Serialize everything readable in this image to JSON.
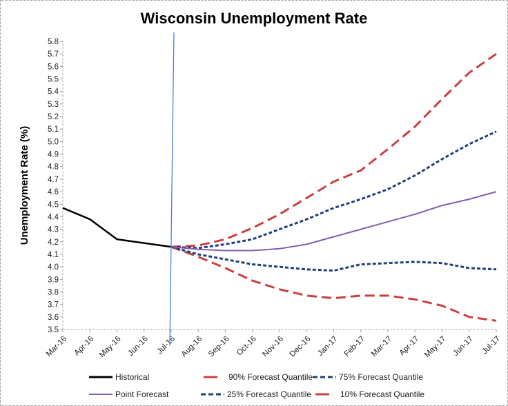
{
  "chart_data": {
    "type": "line",
    "title": "Wisconsin Unemployment Rate",
    "xlabel": "",
    "ylabel": "Unemployment Rate (%)",
    "ylim": [
      3.5,
      5.8
    ],
    "ytick_step": 0.1,
    "yticks": [
      "3.5",
      "3.6",
      "3.7",
      "3.8",
      "3.9",
      "4.0",
      "4.1",
      "4.2",
      "4.3",
      "4.4",
      "4.5",
      "4.6",
      "4.7",
      "4.8",
      "4.9",
      "5.0",
      "5.1",
      "5.2",
      "5.3",
      "5.4",
      "5.5",
      "5.6",
      "5.7",
      "5.8"
    ],
    "categories": [
      "Mar-16",
      "Apr-16",
      "May-16",
      "Jun-16",
      "Jul-16",
      "Aug-16",
      "Sep-16",
      "Oct-16",
      "Nov-16",
      "Dec-16",
      "Jan-17",
      "Feb-17",
      "Mar-17",
      "Apr-17",
      "May-17",
      "Jun-17",
      "Jul-17"
    ],
    "grid": false,
    "vertical_marker": {
      "at": "Jul-16",
      "color": "#4a7fd0"
    },
    "legend_position": "bottom",
    "series": [
      {
        "name": "Historical",
        "color": "#000000",
        "style": "solid",
        "start": "Mar-16",
        "values": [
          4.47,
          4.38,
          4.22,
          4.19,
          4.16
        ]
      },
      {
        "name": "Point Forecast",
        "color": "#8060b0",
        "style": "solid",
        "start": "Jul-16",
        "values": [
          4.16,
          4.14,
          4.13,
          4.13,
          4.145,
          4.18,
          4.24,
          4.3,
          4.36,
          4.42,
          4.49,
          4.54,
          4.6
        ]
      },
      {
        "name": "90% Forecast Quantile",
        "color": "#c8403f",
        "style": "long-dash",
        "start": "Jul-16",
        "values": [
          4.16,
          4.17,
          4.22,
          4.31,
          4.42,
          4.55,
          4.68,
          4.77,
          4.94,
          5.12,
          5.34,
          5.55,
          5.7
        ]
      },
      {
        "name": "25% Forecast Quantile",
        "color": "#1f3f7a",
        "style": "short-dash",
        "start": "Jul-16",
        "values": [
          4.16,
          4.1,
          4.06,
          4.02,
          4.0,
          3.98,
          3.97,
          4.02,
          4.03,
          4.04,
          4.03,
          3.99,
          3.98
        ]
      },
      {
        "name": "75% Forecast Quantile",
        "color": "#1f3f7a",
        "style": "short-dash",
        "start": "Jul-16",
        "values": [
          4.16,
          4.15,
          4.18,
          4.22,
          4.3,
          4.38,
          4.47,
          4.54,
          4.62,
          4.73,
          4.86,
          4.98,
          5.08
        ]
      },
      {
        "name": "10% Forecast Quantile",
        "color": "#c8403f",
        "style": "long-dash",
        "start": "Jul-16",
        "values": [
          4.16,
          4.08,
          3.99,
          3.89,
          3.82,
          3.77,
          3.75,
          3.77,
          3.77,
          3.74,
          3.69,
          3.6,
          3.57
        ]
      }
    ],
    "legend": [
      {
        "label": "Historical",
        "series": 0
      },
      {
        "label": "90% Forecast Quantile",
        "series": 2
      },
      {
        "label": "75% Forecast Quantile",
        "series": 4
      },
      {
        "label": "Point Forecast",
        "series": 1
      },
      {
        "label": "25% Forecast Quantile",
        "series": 3
      },
      {
        "label": "10% Forecast Quantile",
        "series": 5
      }
    ]
  }
}
